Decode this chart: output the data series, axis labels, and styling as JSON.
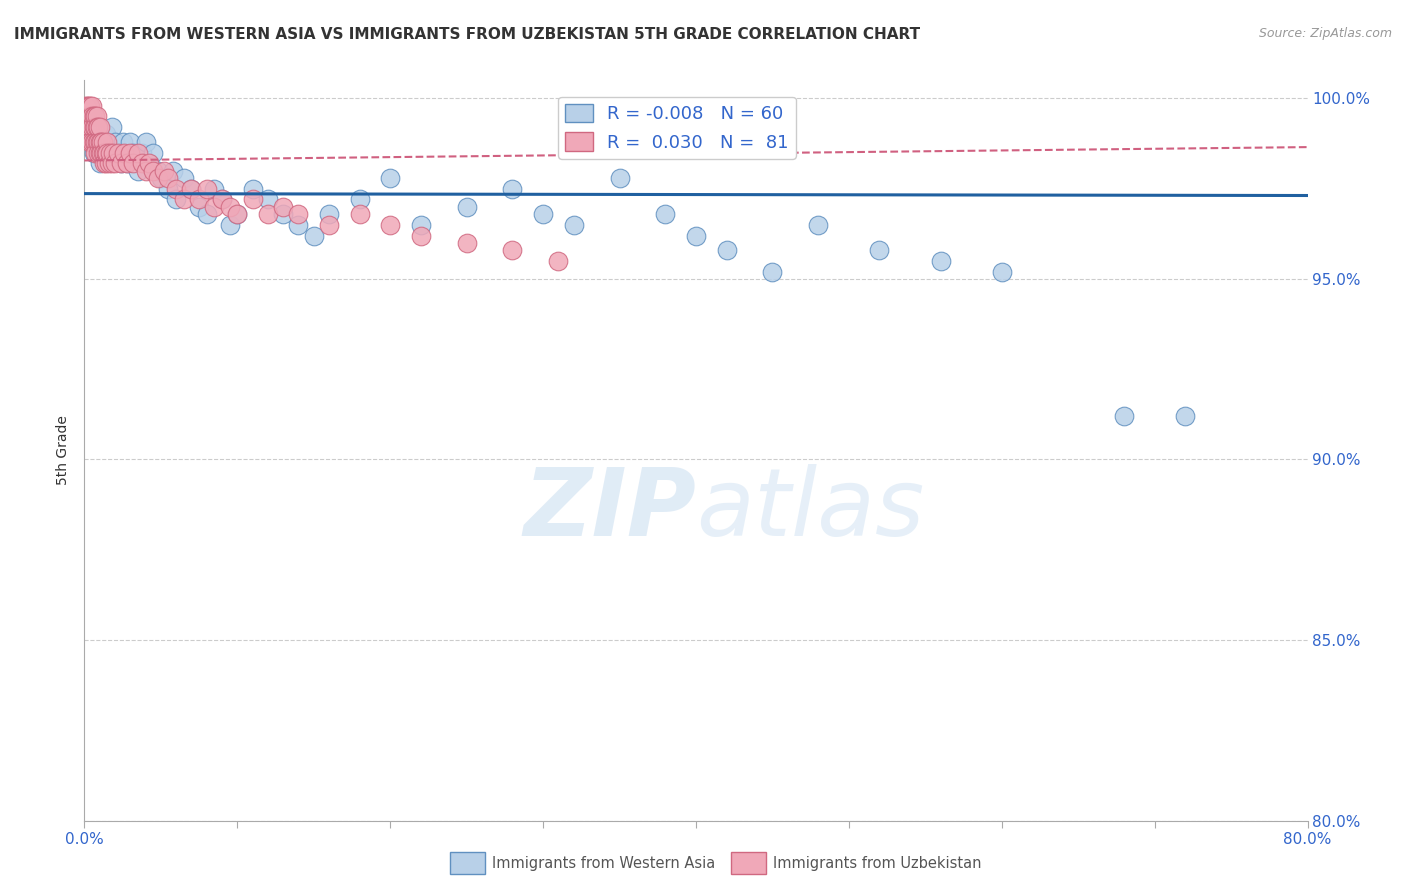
{
  "title": "IMMIGRANTS FROM WESTERN ASIA VS IMMIGRANTS FROM UZBEKISTAN 5TH GRADE CORRELATION CHART",
  "source": "Source: ZipAtlas.com",
  "ylabel": "5th Grade",
  "xlim": [
    0.0,
    0.8
  ],
  "ylim": [
    0.8,
    1.005
  ],
  "xticks": [
    0.0,
    0.1,
    0.2,
    0.3,
    0.4,
    0.5,
    0.6,
    0.7,
    0.8
  ],
  "yticks": [
    0.8,
    0.85,
    0.9,
    0.95,
    1.0
  ],
  "xtick_labels": [
    "0.0%",
    "",
    "",
    "",
    "",
    "",
    "",
    "",
    "80.0%"
  ],
  "ytick_labels": [
    "80.0%",
    "85.0%",
    "90.0%",
    "95.0%",
    "100.0%"
  ],
  "blue_R": -0.008,
  "blue_N": 60,
  "pink_R": 0.03,
  "pink_N": 81,
  "blue_color": "#b8d0e8",
  "pink_color": "#f0a8b8",
  "blue_edge": "#6090c0",
  "pink_edge": "#d06880",
  "trend_blue_color": "#2060a0",
  "trend_pink_color": "#d06080",
  "legend_blue_label": "Immigrants from Western Asia",
  "legend_pink_label": "Immigrants from Uzbekistan",
  "watermark_zip": "ZIP",
  "watermark_atlas": "atlas",
  "blue_x": [
    0.004,
    0.006,
    0.008,
    0.01,
    0.01,
    0.012,
    0.014,
    0.015,
    0.016,
    0.018,
    0.02,
    0.022,
    0.024,
    0.025,
    0.026,
    0.028,
    0.03,
    0.032,
    0.035,
    0.038,
    0.04,
    0.042,
    0.045,
    0.048,
    0.05,
    0.055,
    0.058,
    0.06,
    0.065,
    0.07,
    0.075,
    0.08,
    0.085,
    0.09,
    0.095,
    0.1,
    0.11,
    0.12,
    0.13,
    0.14,
    0.15,
    0.16,
    0.18,
    0.2,
    0.22,
    0.25,
    0.28,
    0.3,
    0.32,
    0.35,
    0.38,
    0.4,
    0.42,
    0.45,
    0.48,
    0.52,
    0.56,
    0.6,
    0.68,
    0.72
  ],
  "blue_y": [
    0.99,
    0.985,
    0.992,
    0.988,
    0.982,
    0.985,
    0.99,
    0.988,
    0.985,
    0.992,
    0.988,
    0.985,
    0.982,
    0.988,
    0.985,
    0.982,
    0.988,
    0.985,
    0.98,
    0.985,
    0.988,
    0.982,
    0.985,
    0.98,
    0.978,
    0.975,
    0.98,
    0.972,
    0.978,
    0.975,
    0.97,
    0.968,
    0.975,
    0.972,
    0.965,
    0.968,
    0.975,
    0.972,
    0.968,
    0.965,
    0.962,
    0.968,
    0.972,
    0.978,
    0.965,
    0.97,
    0.975,
    0.968,
    0.965,
    0.978,
    0.968,
    0.962,
    0.958,
    0.952,
    0.965,
    0.958,
    0.955,
    0.952,
    0.912,
    0.912
  ],
  "pink_x": [
    0.001,
    0.001,
    0.002,
    0.002,
    0.002,
    0.003,
    0.003,
    0.003,
    0.004,
    0.004,
    0.004,
    0.004,
    0.005,
    0.005,
    0.005,
    0.005,
    0.006,
    0.006,
    0.006,
    0.007,
    0.007,
    0.007,
    0.007,
    0.008,
    0.008,
    0.008,
    0.009,
    0.009,
    0.009,
    0.01,
    0.01,
    0.01,
    0.011,
    0.011,
    0.012,
    0.012,
    0.013,
    0.013,
    0.014,
    0.014,
    0.015,
    0.015,
    0.016,
    0.017,
    0.018,
    0.019,
    0.02,
    0.022,
    0.024,
    0.026,
    0.028,
    0.03,
    0.032,
    0.035,
    0.038,
    0.04,
    0.042,
    0.045,
    0.048,
    0.052,
    0.055,
    0.06,
    0.065,
    0.07,
    0.075,
    0.08,
    0.085,
    0.09,
    0.095,
    0.1,
    0.11,
    0.12,
    0.13,
    0.14,
    0.16,
    0.18,
    0.2,
    0.22,
    0.25,
    0.28,
    0.31
  ],
  "pink_y": [
    0.998,
    0.995,
    0.998,
    0.995,
    0.992,
    0.998,
    0.995,
    0.992,
    0.998,
    0.995,
    0.992,
    0.988,
    0.998,
    0.995,
    0.992,
    0.988,
    0.995,
    0.992,
    0.988,
    0.995,
    0.992,
    0.988,
    0.985,
    0.995,
    0.992,
    0.988,
    0.992,
    0.988,
    0.985,
    0.992,
    0.988,
    0.985,
    0.988,
    0.985,
    0.988,
    0.985,
    0.985,
    0.982,
    0.985,
    0.982,
    0.988,
    0.985,
    0.982,
    0.985,
    0.982,
    0.985,
    0.982,
    0.985,
    0.982,
    0.985,
    0.982,
    0.985,
    0.982,
    0.985,
    0.982,
    0.98,
    0.982,
    0.98,
    0.978,
    0.98,
    0.978,
    0.975,
    0.972,
    0.975,
    0.972,
    0.975,
    0.97,
    0.972,
    0.97,
    0.968,
    0.972,
    0.968,
    0.97,
    0.968,
    0.965,
    0.968,
    0.965,
    0.962,
    0.96,
    0.958,
    0.955
  ]
}
